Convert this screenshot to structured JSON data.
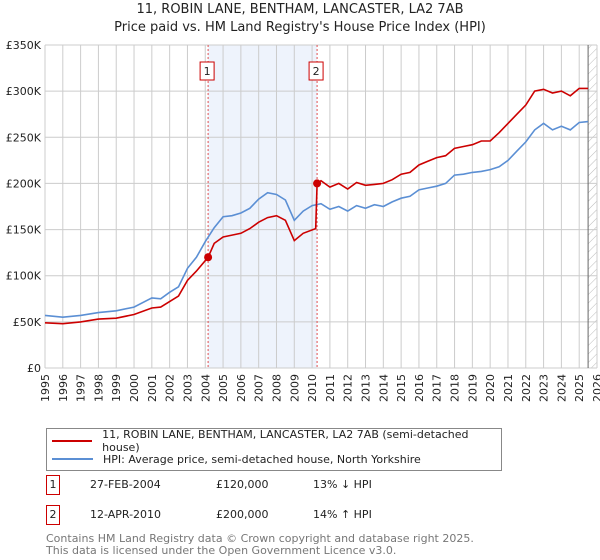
{
  "chart_data": {
    "type": "line",
    "title": "11, ROBIN LANE, BENTHAM, LANCASTER, LA2 7AB",
    "subtitle": "Price paid vs. HM Land Registry's House Price Index (HPI)",
    "xlim": [
      1995,
      2026
    ],
    "ylim": [
      0,
      350000
    ],
    "y_ticks": [
      {
        "v": 0,
        "label": "£0"
      },
      {
        "v": 50000,
        "label": "£50K"
      },
      {
        "v": 100000,
        "label": "£100K"
      },
      {
        "v": 150000,
        "label": "£150K"
      },
      {
        "v": 200000,
        "label": "£200K"
      },
      {
        "v": 250000,
        "label": "£250K"
      },
      {
        "v": 300000,
        "label": "£300K"
      },
      {
        "v": 350000,
        "label": "£350K"
      }
    ],
    "x_ticks": [
      "1995",
      "1996",
      "1997",
      "1998",
      "1999",
      "2000",
      "2001",
      "2002",
      "2003",
      "2004",
      "2005",
      "2006",
      "2007",
      "2008",
      "2009",
      "2010",
      "2011",
      "2012",
      "2013",
      "2014",
      "2015",
      "2016",
      "2017",
      "2018",
      "2019",
      "2020",
      "2021",
      "2022",
      "2023",
      "2024",
      "2025",
      "2026"
    ],
    "grid": true,
    "shaded_range": [
      2004.16,
      2010.28
    ],
    "hatched_from": 2025.5,
    "series": [
      {
        "name": "11, ROBIN LANE, BENTHAM, LANCASTER, LA2 7AB (semi-detached house)",
        "color": "#cc0000",
        "x": [
          1995,
          1996,
          1997,
          1998,
          1999,
          2000,
          2001,
          2001.5,
          2002,
          2002.5,
          2003,
          2003.5,
          2004.16,
          2004.5,
          2005,
          2005.5,
          2006,
          2006.5,
          2007,
          2007.5,
          2008,
          2008.5,
          2009,
          2009.5,
          2010.2,
          2010.28,
          2010.5,
          2011,
          2011.5,
          2012,
          2012.5,
          2013,
          2013.5,
          2014,
          2014.5,
          2015,
          2015.5,
          2016,
          2016.5,
          2017,
          2017.5,
          2018,
          2018.5,
          2019,
          2019.5,
          2020,
          2020.5,
          2021,
          2021.5,
          2022,
          2022.5,
          2023,
          2023.5,
          2024,
          2024.5,
          2025,
          2025.5
        ],
        "y": [
          49,
          48,
          50,
          53,
          54,
          58,
          65,
          66,
          72,
          78,
          95,
          105,
          120,
          135,
          142,
          144,
          146,
          151,
          158,
          163,
          165,
          160,
          138,
          146,
          151,
          200,
          203,
          196,
          200,
          194,
          201,
          198,
          199,
          200,
          204,
          210,
          212,
          220,
          224,
          228,
          230,
          238,
          240,
          242,
          246,
          246,
          255,
          265,
          275,
          285,
          300,
          302,
          298,
          300,
          295,
          303,
          303
        ]
      },
      {
        "name": "HPI: Average price, semi-detached house, North Yorkshire",
        "color": "#5b8fd4",
        "x": [
          1995,
          1996,
          1997,
          1998,
          1999,
          2000,
          2001,
          2001.5,
          2002,
          2002.5,
          2003,
          2003.5,
          2004,
          2004.5,
          2005,
          2005.5,
          2006,
          2006.5,
          2007,
          2007.5,
          2008,
          2008.5,
          2009,
          2009.5,
          2010,
          2010.5,
          2011,
          2011.5,
          2012,
          2012.5,
          2013,
          2013.5,
          2014,
          2014.5,
          2015,
          2015.5,
          2016,
          2016.5,
          2017,
          2017.5,
          2018,
          2018.5,
          2019,
          2019.5,
          2020,
          2020.5,
          2021,
          2021.5,
          2022,
          2022.5,
          2023,
          2023.5,
          2024,
          2024.5,
          2025,
          2025.5
        ],
        "y": [
          57,
          55,
          57,
          60,
          62,
          66,
          76,
          75,
          82,
          88,
          108,
          120,
          137,
          152,
          164,
          165,
          168,
          173,
          183,
          190,
          188,
          182,
          160,
          170,
          176,
          178,
          172,
          175,
          170,
          176,
          173,
          177,
          175,
          180,
          184,
          186,
          193,
          195,
          197,
          200,
          209,
          210,
          212,
          213,
          215,
          218,
          225,
          235,
          245,
          258,
          265,
          258,
          262,
          258,
          266,
          267
        ]
      }
    ],
    "y_units": "thousands GBP",
    "sales": [
      {
        "label": "1",
        "x": 2004.16,
        "y": 120
      },
      {
        "label": "2",
        "x": 2010.28,
        "y": 200
      }
    ]
  },
  "legend": {
    "items": [
      "11, ROBIN LANE, BENTHAM, LANCASTER, LA2 7AB (semi-detached house)",
      "HPI: Average price, semi-detached house, North Yorkshire"
    ]
  },
  "transactions": [
    {
      "num": "1",
      "date": "27-FEB-2004",
      "price": "£120,000",
      "hpi": "13% ↓ HPI"
    },
    {
      "num": "2",
      "date": "12-APR-2010",
      "price": "£200,000",
      "hpi": "14% ↑ HPI"
    }
  ],
  "footer": {
    "line1": "Contains HM Land Registry data © Crown copyright and database right 2025.",
    "line2": "This data is licensed under the Open Government Licence v3.0."
  }
}
